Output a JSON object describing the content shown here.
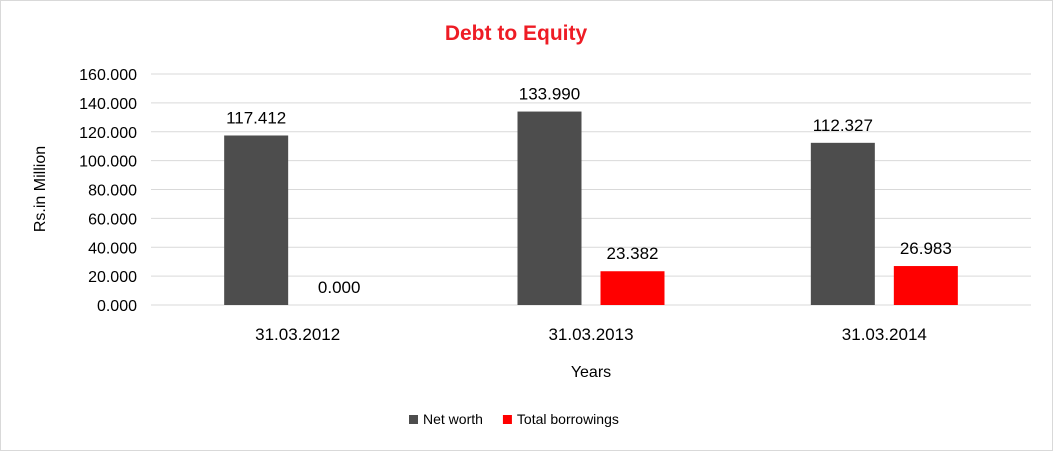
{
  "chart_data": {
    "type": "bar",
    "title": "Debt to Equity",
    "title_color": "#ee1c25",
    "xlabel": "Years",
    "ylabel": "Rs.in Million",
    "categories": [
      "31.03.2012",
      "31.03.2013",
      "31.03.2014"
    ],
    "series": [
      {
        "name": "Net worth",
        "color": "#4d4d4d",
        "values": [
          117.412,
          133.99,
          112.327
        ],
        "labels": [
          "117.412",
          "133.990",
          "112.327"
        ]
      },
      {
        "name": "Total borrowings",
        "color": "#ff0000",
        "values": [
          0.0,
          23.382,
          26.983
        ],
        "labels": [
          "0.000",
          "23.382",
          "26.983"
        ]
      }
    ],
    "ylim": [
      0,
      160
    ],
    "yticks": [
      "0.000",
      "20.000",
      "40.000",
      "60.000",
      "80.000",
      "100.000",
      "120.000",
      "140.000",
      "160.000"
    ],
    "grid": true,
    "legend_position": "bottom"
  }
}
